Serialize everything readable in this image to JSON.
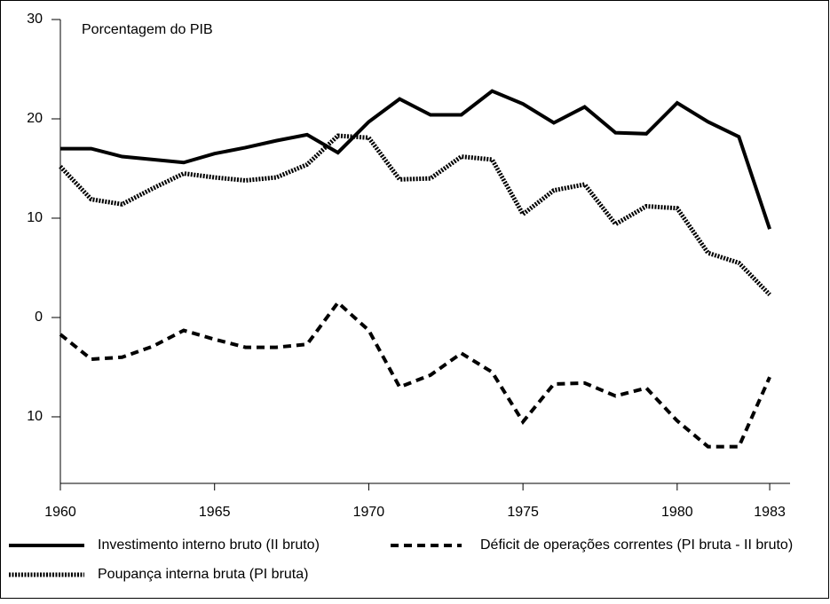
{
  "chart_data": {
    "type": "line",
    "y_axis_label": "Porcentagem do PIB",
    "x": [
      1960,
      1961,
      1962,
      1963,
      1964,
      1965,
      1966,
      1967,
      1968,
      1969,
      1970,
      1971,
      1972,
      1973,
      1974,
      1975,
      1976,
      1977,
      1978,
      1979,
      1980,
      1981,
      1982,
      1983
    ],
    "series": [
      {
        "name": "Investimento interno bruto (II bruto)",
        "color": "#000000",
        "style": "solid",
        "values": [
          17.0,
          17.0,
          16.2,
          15.9,
          15.6,
          16.5,
          17.1,
          17.8,
          18.4,
          16.6,
          19.7,
          22.0,
          20.4,
          20.4,
          22.8,
          21.5,
          19.6,
          21.2,
          18.6,
          18.5,
          21.6,
          19.7,
          18.2,
          8.9
        ]
      },
      {
        "name": "Déficit de operações correntes (PI bruta - II bruto)",
        "color": "#000000",
        "style": "dashed",
        "values": [
          -1.7,
          -4.2,
          -4.0,
          -2.9,
          -1.3,
          -2.2,
          -3.0,
          -3.0,
          -2.7,
          1.5,
          -1.3,
          -7.0,
          -5.8,
          -3.6,
          -5.5,
          -10.5,
          -6.7,
          -6.6,
          -7.9,
          -7.1,
          -10.4,
          -13.0,
          -13.0,
          -6.0
        ]
      },
      {
        "name": "Poupança interna bruta (PI bruta)",
        "color": "#000000",
        "style": "dotted",
        "values": [
          15.2,
          11.9,
          11.4,
          13.0,
          14.5,
          14.1,
          13.8,
          14.1,
          15.4,
          18.3,
          18.1,
          13.9,
          14.0,
          16.2,
          15.9,
          10.4,
          12.8,
          13.4,
          9.4,
          11.2,
          11.0,
          6.5,
          5.5,
          2.3
        ]
      }
    ],
    "xlim": [
      1960,
      1983.66
    ],
    "xticks": [
      1960,
      1965,
      1970,
      1975,
      1980,
      1983
    ],
    "ylim": [
      -16.7,
      30
    ],
    "yticks": [
      30,
      20,
      10,
      0,
      {
        "value": -10,
        "label": "10"
      }
    ],
    "grid": false
  }
}
